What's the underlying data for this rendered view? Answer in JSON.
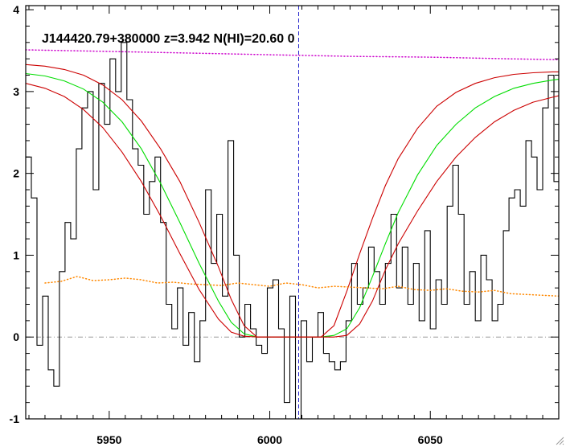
{
  "chart_data": {
    "type": "line",
    "title": "J144420.79+380000 z=3.942 N(HI)=20.60 0",
    "xlabel": "",
    "ylabel": "",
    "xlim": [
      5924,
      6090
    ],
    "ylim": [
      -1.0,
      4.05
    ],
    "x_ticks": [
      5950,
      6000,
      6050
    ],
    "y_ticks": [
      -1,
      0,
      1,
      2,
      3,
      4
    ],
    "x_tick_labels": [
      "5950",
      "6000",
      "6050"
    ],
    "y_tick_labels": [
      "-1",
      "0",
      "1",
      "2",
      "3",
      "4"
    ],
    "reference_lines": {
      "zero_level": 0,
      "line_center": 6009
    },
    "series": [
      {
        "role": "flux",
        "style": "histogram",
        "color": "#000000",
        "x": [
          5924.0,
          5925.75,
          5927.5,
          5929.25,
          5931.0,
          5932.75,
          5934.5,
          5936.25,
          5938.0,
          5939.75,
          5941.5,
          5943.25,
          5945.0,
          5946.75,
          5948.5,
          5950.25,
          5952.0,
          5953.75,
          5955.5,
          5957.25,
          5959.0,
          5960.75,
          5962.5,
          5964.25,
          5966.0,
          5967.75,
          5969.5,
          5971.25,
          5973.0,
          5974.75,
          5976.5,
          5978.25,
          5980.0,
          5981.75,
          5983.5,
          5985.25,
          5987.0,
          5988.75,
          5990.5,
          5992.25,
          5994.0,
          5995.75,
          5997.5,
          5999.25,
          6001.0,
          6002.75,
          6004.5,
          6006.25,
          6008.0,
          6009.75,
          6011.5,
          6013.25,
          6015.0,
          6016.75,
          6018.5,
          6020.25,
          6022.0,
          6023.75,
          6025.5,
          6027.25,
          6029.0,
          6030.75,
          6032.5,
          6034.25,
          6036.0,
          6037.75,
          6039.5,
          6041.25,
          6043.0,
          6044.75,
          6046.5,
          6048.25,
          6050.0,
          6051.75,
          6053.5,
          6055.25,
          6057.0,
          6058.75,
          6060.5,
          6062.25,
          6064.0,
          6065.75,
          6067.5,
          6069.25,
          6071.0,
          6072.75,
          6074.5,
          6076.25,
          6078.0,
          6079.75,
          6081.5,
          6083.25,
          6085.0,
          6086.75,
          6088.5
        ],
        "y": [
          2.2,
          1.7,
          -0.1,
          0.5,
          -0.4,
          -0.6,
          0.8,
          1.4,
          1.2,
          2.3,
          2.8,
          3.0,
          1.8,
          3.1,
          2.6,
          3.4,
          3.0,
          3.6,
          2.9,
          2.3,
          2.1,
          1.5,
          1.9,
          2.2,
          1.4,
          0.4,
          0.1,
          0.6,
          -0.1,
          0.3,
          -0.3,
          0.2,
          1.8,
          0.9,
          1.5,
          0.5,
          2.4,
          1.0,
          0.0,
          0.4,
          0.1,
          -0.1,
          -0.2,
          0.6,
          0.7,
          0.1,
          -0.8,
          0.5,
          -1.0,
          0.2,
          -0.3,
          0.0,
          0.3,
          -0.2,
          -0.3,
          -0.4,
          -0.3,
          0.2,
          0.9,
          0.4,
          0.6,
          1.1,
          0.8,
          0.4,
          0.9,
          1.5,
          0.6,
          1.1,
          0.4,
          0.9,
          0.2,
          1.3,
          0.1,
          0.7,
          0.4,
          1.6,
          2.1,
          1.5,
          0.4,
          0.8,
          0.2,
          1.0,
          0.7,
          0.2,
          0.4,
          1.3,
          1.7,
          1.8,
          1.6,
          2.4,
          2.2,
          1.8,
          2.8,
          3.2,
          1.9
        ]
      },
      {
        "role": "model",
        "color": "#00dd00",
        "x": [
          5924,
          5930,
          5936,
          5942,
          5948,
          5954,
          5960,
          5966,
          5972,
          5978,
          5984,
          5988,
          5992,
          5996,
          6000,
          6004,
          6008,
          6012,
          6016,
          6020,
          6024,
          6028,
          6032,
          6036,
          6040,
          6046,
          6052,
          6058,
          6064,
          6070,
          6076,
          6082,
          6088,
          6090
        ],
        "y": [
          3.22,
          3.19,
          3.13,
          3.03,
          2.87,
          2.63,
          2.3,
          1.88,
          1.4,
          0.9,
          0.44,
          0.18,
          0.04,
          0.0,
          0.0,
          0.0,
          0.0,
          0.0,
          0.0,
          0.02,
          0.1,
          0.36,
          0.74,
          1.14,
          1.52,
          1.98,
          2.34,
          2.6,
          2.8,
          2.94,
          3.04,
          3.1,
          3.14,
          3.15
        ]
      },
      {
        "role": "model_upper",
        "color": "#cc0000",
        "x": [
          5924,
          5930,
          5936,
          5942,
          5948,
          5954,
          5960,
          5966,
          5972,
          5978,
          5984,
          5988,
          5992,
          5996,
          6000,
          6004,
          6008,
          6012,
          6016,
          6020,
          6024,
          6028,
          6032,
          6036,
          6040,
          6046,
          6052,
          6058,
          6064,
          6070,
          6076,
          6082,
          6088,
          6090
        ],
        "y": [
          3.33,
          3.31,
          3.27,
          3.2,
          3.08,
          2.9,
          2.64,
          2.3,
          1.9,
          1.4,
          0.86,
          0.46,
          0.14,
          0.0,
          0.0,
          0.0,
          0.0,
          0.0,
          0.0,
          0.14,
          0.56,
          1.02,
          1.45,
          1.85,
          2.18,
          2.55,
          2.82,
          2.99,
          3.1,
          3.17,
          3.21,
          3.23,
          3.24,
          3.24
        ]
      },
      {
        "role": "model_lower",
        "color": "#cc0000",
        "x": [
          5924,
          5930,
          5936,
          5942,
          5948,
          5954,
          5960,
          5966,
          5972,
          5978,
          5984,
          5988,
          5992,
          5996,
          6000,
          6004,
          6008,
          6012,
          6016,
          6020,
          6024,
          6028,
          6032,
          6036,
          6040,
          6046,
          6052,
          6058,
          6064,
          6070,
          6076,
          6082,
          6088,
          6090
        ],
        "y": [
          3.1,
          3.04,
          2.94,
          2.78,
          2.56,
          2.26,
          1.9,
          1.48,
          1.02,
          0.58,
          0.22,
          0.06,
          0.01,
          0.0,
          0.0,
          0.0,
          0.0,
          0.0,
          0.0,
          0.0,
          0.02,
          0.16,
          0.44,
          0.82,
          1.14,
          1.54,
          1.9,
          2.2,
          2.44,
          2.63,
          2.77,
          2.87,
          2.93,
          2.95
        ]
      },
      {
        "role": "continuum",
        "style": "dotted",
        "color": "#cc00cc",
        "x": [
          5924,
          5950,
          5975,
          6000,
          6025,
          6050,
          6075,
          6090
        ],
        "y": [
          3.51,
          3.49,
          3.47,
          3.45,
          3.43,
          3.42,
          3.4,
          3.39
        ]
      },
      {
        "role": "error",
        "style": "dotted",
        "color": "#ff8800",
        "x": [
          5930,
          5935,
          5940,
          5945,
          5950,
          5955,
          5960,
          5965,
          5970,
          5975,
          5980,
          5985,
          5990,
          5995,
          6000,
          6005,
          6010,
          6015,
          6020,
          6025,
          6030,
          6035,
          6040,
          6045,
          6050,
          6055,
          6060,
          6065,
          6070,
          6075,
          6080,
          6085,
          6090
        ],
        "y": [
          0.66,
          0.68,
          0.74,
          0.69,
          0.7,
          0.72,
          0.7,
          0.66,
          0.67,
          0.65,
          0.64,
          0.63,
          0.66,
          0.64,
          0.62,
          0.66,
          0.64,
          0.6,
          0.62,
          0.61,
          0.6,
          0.59,
          0.62,
          0.58,
          0.57,
          0.59,
          0.56,
          0.55,
          0.57,
          0.53,
          0.52,
          0.51,
          0.5
        ]
      }
    ]
  }
}
